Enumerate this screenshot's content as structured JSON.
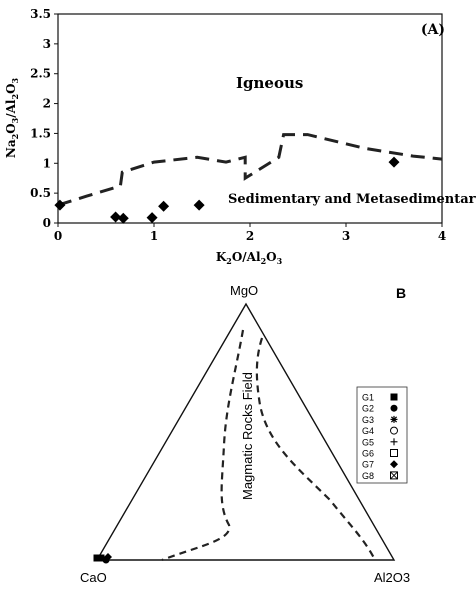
{
  "chart_data": [
    {
      "panel_label": "(A)",
      "type": "scatter",
      "xlabel": "K2O/Al2O3",
      "ylabel": "Na2O3/Al2O3",
      "xlim": [
        0,
        4
      ],
      "ylim": [
        0,
        3.5
      ],
      "x_ticks": [
        "0",
        "1",
        "2",
        "3",
        "4"
      ],
      "y_ticks": [
        "0",
        "0.5",
        "1",
        "1.5",
        "2",
        "2.5",
        "3",
        "3.5"
      ],
      "grid": false,
      "field_labels": {
        "upper": "Igneous",
        "lower": "Sedimentary and Metasedimentary"
      },
      "boundary": [
        [
          0.0,
          0.3
        ],
        [
          0.3,
          0.45
        ],
        [
          0.65,
          0.62
        ],
        [
          0.67,
          0.85
        ],
        [
          1.0,
          1.02
        ],
        [
          1.45,
          1.1
        ],
        [
          1.75,
          1.02
        ],
        [
          1.95,
          1.1
        ],
        [
          1.95,
          0.75
        ],
        [
          2.3,
          1.1
        ],
        [
          2.35,
          1.48
        ],
        [
          2.6,
          1.48
        ],
        [
          3.2,
          1.25
        ],
        [
          3.7,
          1.12
        ],
        [
          4.0,
          1.07
        ]
      ],
      "points": [
        {
          "x": 0.02,
          "y": 0.3
        },
        {
          "x": 0.6,
          "y": 0.1
        },
        {
          "x": 0.68,
          "y": 0.08
        },
        {
          "x": 0.98,
          "y": 0.09
        },
        {
          "x": 1.1,
          "y": 0.28
        },
        {
          "x": 1.47,
          "y": 0.3
        },
        {
          "x": 3.5,
          "y": 1.02
        }
      ]
    },
    {
      "panel_label": "B",
      "type": "ternary",
      "apex_labels": {
        "top": "MgO",
        "left": "CaO",
        "right": "Al2O3"
      },
      "field_label": "Magmatic Rocks Field",
      "legend": [
        {
          "label": "G1",
          "marker": "square-filled"
        },
        {
          "label": "G2",
          "marker": "circle-filled"
        },
        {
          "label": "G3",
          "marker": "asterisk"
        },
        {
          "label": "G4",
          "marker": "circle-open"
        },
        {
          "label": "G5",
          "marker": "plus"
        },
        {
          "label": "G6",
          "marker": "square-open"
        },
        {
          "label": "G7",
          "marker": "diamond-filled"
        },
        {
          "label": "G8",
          "marker": "square-cross"
        }
      ],
      "samples_near_CaO": [
        "square-filled",
        "square-filled",
        "circle-filled",
        "diamond-filled"
      ]
    }
  ]
}
